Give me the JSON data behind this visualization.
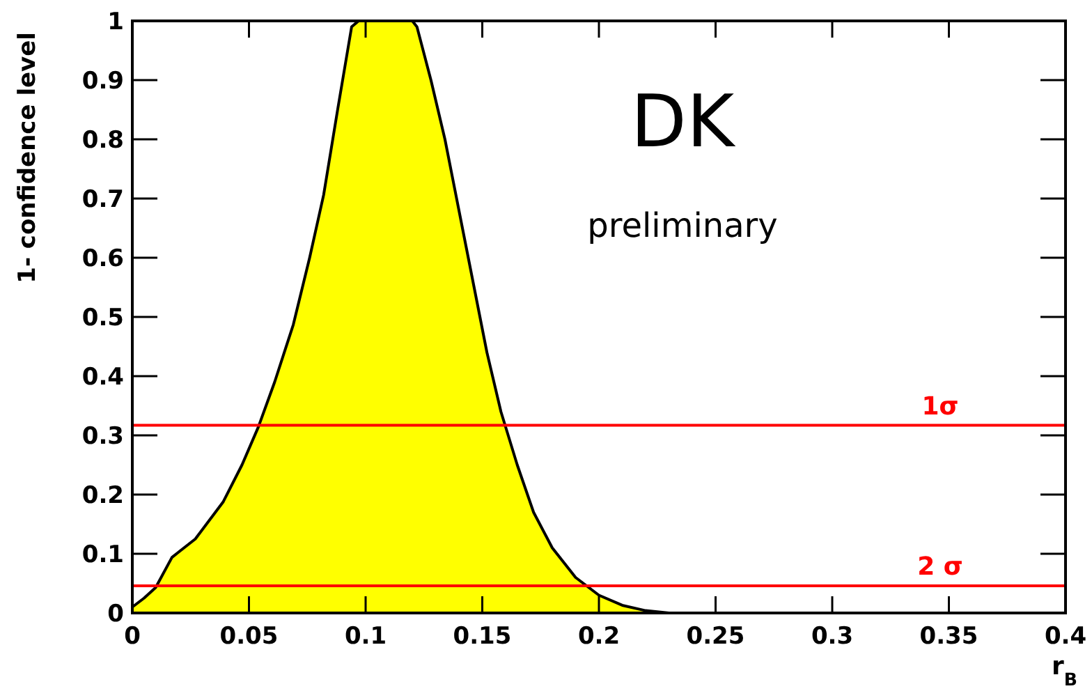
{
  "chart_data": {
    "type": "area",
    "xlabel": "r$_{B}$",
    "ylabel": "1- confidence level",
    "x": [
      0,
      0.005,
      0.01,
      0.017,
      0.027,
      0.039,
      0.047,
      0.054,
      0.061,
      0.069,
      0.076,
      0.082,
      0.088,
      0.094,
      0.097,
      0.12,
      0.122,
      0.128,
      0.134,
      0.143,
      0.152,
      0.158,
      0.165,
      0.172,
      0.18,
      0.19,
      0.2,
      0.21,
      0.22,
      0.23
    ],
    "series": [
      {
        "color": "#ffff00",
        "values": [
          0.01,
          0.025,
          0.043,
          0.094,
          0.125,
          0.188,
          0.25,
          0.314,
          0.39,
          0.487,
          0.6,
          0.706,
          0.85,
          0.99,
          1,
          1,
          0.99,
          0.9,
          0.8,
          0.62,
          0.44,
          0.34,
          0.25,
          0.17,
          0.11,
          0.06,
          0.03,
          0.013,
          0.004,
          0
        ]
      }
    ],
    "xlim": [
      0,
      0.4
    ],
    "ylim": [
      0,
      1
    ],
    "xticks": [
      0,
      0.05,
      0.1,
      0.15,
      0.2,
      0.25,
      0.3,
      0.35,
      0.4
    ],
    "yticks": [
      0,
      0.1,
      0.2,
      0.3,
      0.4,
      0.5,
      0.6,
      0.7,
      0.8,
      0.9,
      1
    ],
    "ref_lines": [
      {
        "axis": "y",
        "value": 0.317,
        "label": "1σ",
        "color": "#ff0000"
      },
      {
        "axis": "y",
        "value": 0.046,
        "label": "2 σ",
        "color": "#ff0000"
      }
    ],
    "annotations": [
      "DK",
      "preliminary"
    ]
  }
}
